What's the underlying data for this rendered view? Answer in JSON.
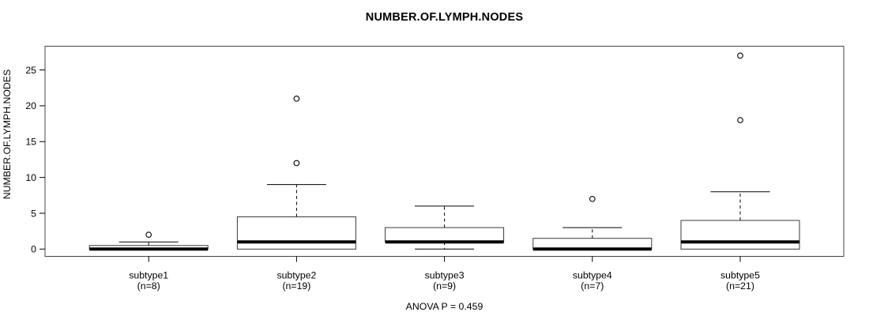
{
  "figure": {
    "title": "NUMBER.OF.LYMPH.NODES",
    "ylabel": "NUMBER.OF.LYMPH.NODES",
    "annotation": "ANOVA P = 0.459"
  },
  "chart_data": {
    "type": "box",
    "title": "NUMBER.OF.LYMPH.NODES",
    "xlabel": "",
    "ylabel": "NUMBER.OF.LYMPH.NODES",
    "annotation": "ANOVA P = 0.459",
    "ylim": [
      -1.1,
      28.2
    ],
    "yticks": [
      0,
      5,
      10,
      15,
      20,
      25
    ],
    "grid": false,
    "legend": null,
    "categories": [
      "subtype1",
      "subtype2",
      "subtype3",
      "subtype4",
      "subtype5"
    ],
    "groups": [
      {
        "label": "subtype1",
        "n_label": "(n=8)",
        "n": 8,
        "whisker_low": 0,
        "q1": 0,
        "median": 0,
        "q3": 0.5,
        "whisker_high": 1,
        "outliers": [
          2
        ]
      },
      {
        "label": "subtype2",
        "n_label": "(n=19)",
        "n": 19,
        "whisker_low": 0,
        "q1": 0,
        "median": 1,
        "q3": 4.5,
        "whisker_high": 9,
        "outliers": [
          12,
          21
        ]
      },
      {
        "label": "subtype3",
        "n_label": "(n=9)",
        "n": 9,
        "whisker_low": 0,
        "q1": 1,
        "median": 1,
        "q3": 3,
        "whisker_high": 6,
        "outliers": []
      },
      {
        "label": "subtype4",
        "n_label": "(n=7)",
        "n": 7,
        "whisker_low": 0,
        "q1": 0,
        "median": 0,
        "q3": 1.5,
        "whisker_high": 3,
        "outliers": [
          7
        ]
      },
      {
        "label": "subtype5",
        "n_label": "(n=21)",
        "n": 21,
        "whisker_low": 0,
        "q1": 0,
        "median": 1,
        "q3": 4,
        "whisker_high": 8,
        "outliers": [
          18,
          27
        ]
      }
    ],
    "colors": {
      "line": "#000000",
      "frame": "#444444",
      "box_stroke": "#3a3a3a",
      "box_fill": "#ffffff",
      "background": "#ffffff"
    }
  }
}
